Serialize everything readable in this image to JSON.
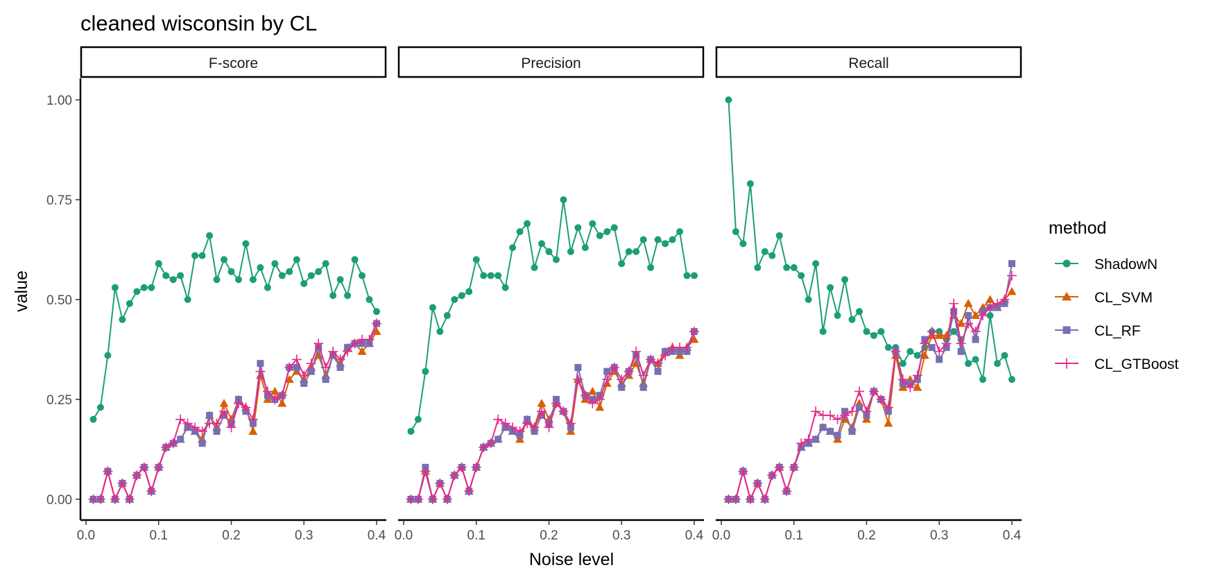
{
  "chart_data": {
    "type": "line",
    "title": "cleaned wisconsin by CL",
    "xlabel": "Noise level",
    "ylabel": "value",
    "xlim": [
      0,
      0.4
    ],
    "ylim": [
      0,
      1
    ],
    "x_ticks": [
      "0.0",
      "0.1",
      "0.2",
      "0.3",
      "0.4"
    ],
    "y_ticks": [
      "0.00",
      "0.25",
      "0.50",
      "0.75",
      "1.00"
    ],
    "grid": false,
    "legend": {
      "title": "method",
      "placement": "right",
      "entries": [
        {
          "name": "ShadowN",
          "color": "#1b9e77",
          "shape": "circle"
        },
        {
          "name": "CL_SVM",
          "color": "#d95f02",
          "shape": "triangle"
        },
        {
          "name": "CL_RF",
          "color": "#7570b3",
          "shape": "square"
        },
        {
          "name": "CL_GTBoost",
          "color": "#e7298a",
          "shape": "plus"
        }
      ]
    },
    "x": [
      0.01,
      0.02,
      0.03,
      0.04,
      0.05,
      0.06,
      0.07,
      0.08,
      0.09,
      0.1,
      0.11,
      0.12,
      0.13,
      0.14,
      0.15,
      0.16,
      0.17,
      0.18,
      0.19,
      0.2,
      0.21,
      0.22,
      0.23,
      0.24,
      0.25,
      0.26,
      0.27,
      0.28,
      0.29,
      0.3,
      0.31,
      0.32,
      0.33,
      0.34,
      0.35,
      0.36,
      0.37,
      0.38,
      0.39,
      0.4
    ],
    "panels": [
      {
        "name": "F-score",
        "series": [
          {
            "name": "ShadowN",
            "values": [
              0.2,
              0.23,
              0.36,
              0.53,
              0.45,
              0.49,
              0.52,
              0.53,
              0.53,
              0.59,
              0.56,
              0.55,
              0.56,
              0.5,
              0.61,
              0.61,
              0.66,
              0.55,
              0.6,
              0.57,
              0.55,
              0.64,
              0.55,
              0.58,
              0.53,
              0.59,
              0.56,
              0.57,
              0.6,
              0.54,
              0.56,
              0.57,
              0.59,
              0.51,
              0.55,
              0.51,
              0.6,
              0.56,
              0.5,
              0.47
            ]
          },
          {
            "name": "CL_SVM",
            "values": [
              0.0,
              0.0,
              0.07,
              0.0,
              0.04,
              0.0,
              0.06,
              0.08,
              0.02,
              0.08,
              0.13,
              0.14,
              0.15,
              0.18,
              0.17,
              0.15,
              0.21,
              0.18,
              0.24,
              0.2,
              0.25,
              0.23,
              0.17,
              0.31,
              0.25,
              0.27,
              0.24,
              0.3,
              0.32,
              0.3,
              0.33,
              0.36,
              0.31,
              0.36,
              0.34,
              0.38,
              0.39,
              0.37,
              0.39,
              0.42
            ]
          },
          {
            "name": "CL_RF",
            "values": [
              0.0,
              0.0,
              0.07,
              0.0,
              0.04,
              0.0,
              0.06,
              0.08,
              0.02,
              0.08,
              0.13,
              0.14,
              0.15,
              0.18,
              0.17,
              0.14,
              0.21,
              0.17,
              0.21,
              0.19,
              0.25,
              0.22,
              0.19,
              0.34,
              0.26,
              0.25,
              0.26,
              0.33,
              0.33,
              0.29,
              0.32,
              0.38,
              0.3,
              0.36,
              0.33,
              0.38,
              0.39,
              0.39,
              0.39,
              0.44
            ]
          },
          {
            "name": "CL_GTBoost",
            "values": [
              0.0,
              0.0,
              0.07,
              0.0,
              0.04,
              0.0,
              0.06,
              0.08,
              0.02,
              0.08,
              0.13,
              0.14,
              0.2,
              0.19,
              0.18,
              0.17,
              0.19,
              0.19,
              0.22,
              0.18,
              0.24,
              0.23,
              0.2,
              0.32,
              0.27,
              0.25,
              0.26,
              0.33,
              0.35,
              0.31,
              0.34,
              0.39,
              0.33,
              0.37,
              0.35,
              0.37,
              0.39,
              0.4,
              0.4,
              0.44
            ]
          }
        ]
      },
      {
        "name": "Precision",
        "series": [
          {
            "name": "ShadowN",
            "values": [
              0.17,
              0.2,
              0.32,
              0.48,
              0.42,
              0.46,
              0.5,
              0.51,
              0.52,
              0.6,
              0.56,
              0.56,
              0.56,
              0.53,
              0.63,
              0.67,
              0.69,
              0.58,
              0.64,
              0.62,
              0.6,
              0.75,
              0.62,
              0.68,
              0.63,
              0.69,
              0.66,
              0.67,
              0.68,
              0.59,
              0.62,
              0.62,
              0.65,
              0.58,
              0.65,
              0.64,
              0.65,
              0.67,
              0.56,
              0.56
            ]
          },
          {
            "name": "CL_SVM",
            "values": [
              0.0,
              0.0,
              0.07,
              0.0,
              0.04,
              0.0,
              0.06,
              0.08,
              0.02,
              0.08,
              0.13,
              0.14,
              0.15,
              0.18,
              0.17,
              0.15,
              0.2,
              0.18,
              0.24,
              0.2,
              0.24,
              0.22,
              0.17,
              0.3,
              0.25,
              0.27,
              0.23,
              0.29,
              0.32,
              0.29,
              0.31,
              0.34,
              0.29,
              0.35,
              0.34,
              0.37,
              0.38,
              0.36,
              0.38,
              0.4
            ]
          },
          {
            "name": "CL_RF",
            "values": [
              0.0,
              0.0,
              0.08,
              0.0,
              0.04,
              0.0,
              0.06,
              0.08,
              0.02,
              0.08,
              0.13,
              0.14,
              0.15,
              0.18,
              0.17,
              0.16,
              0.2,
              0.17,
              0.21,
              0.19,
              0.25,
              0.22,
              0.18,
              0.33,
              0.26,
              0.25,
              0.26,
              0.32,
              0.33,
              0.28,
              0.32,
              0.36,
              0.28,
              0.35,
              0.32,
              0.37,
              0.37,
              0.37,
              0.37,
              0.42
            ]
          },
          {
            "name": "CL_GTBoost",
            "values": [
              0.0,
              0.0,
              0.07,
              0.0,
              0.04,
              0.0,
              0.06,
              0.08,
              0.02,
              0.08,
              0.13,
              0.14,
              0.2,
              0.19,
              0.18,
              0.17,
              0.19,
              0.18,
              0.22,
              0.18,
              0.24,
              0.22,
              0.19,
              0.3,
              0.26,
              0.24,
              0.25,
              0.3,
              0.33,
              0.3,
              0.32,
              0.37,
              0.31,
              0.35,
              0.34,
              0.36,
              0.38,
              0.38,
              0.38,
              0.42
            ]
          }
        ]
      },
      {
        "name": "Recall",
        "series": [
          {
            "name": "ShadowN",
            "values": [
              1.0,
              0.67,
              0.64,
              0.79,
              0.58,
              0.62,
              0.61,
              0.66,
              0.58,
              0.58,
              0.56,
              0.5,
              0.59,
              0.42,
              0.53,
              0.46,
              0.55,
              0.45,
              0.47,
              0.42,
              0.41,
              0.42,
              0.38,
              0.38,
              0.34,
              0.37,
              0.36,
              0.38,
              0.42,
              0.42,
              0.4,
              0.42,
              0.4,
              0.34,
              0.35,
              0.3,
              0.46,
              0.34,
              0.36,
              0.3
            ]
          },
          {
            "name": "CL_SVM",
            "values": [
              0.0,
              0.0,
              0.07,
              0.0,
              0.04,
              0.0,
              0.06,
              0.08,
              0.02,
              0.08,
              0.13,
              0.14,
              0.15,
              0.18,
              0.17,
              0.15,
              0.2,
              0.18,
              0.24,
              0.2,
              0.27,
              0.25,
              0.19,
              0.36,
              0.28,
              0.3,
              0.28,
              0.36,
              0.41,
              0.41,
              0.41,
              0.46,
              0.44,
              0.49,
              0.46,
              0.48,
              0.5,
              0.48,
              0.5,
              0.52
            ]
          },
          {
            "name": "CL_RF",
            "values": [
              0.0,
              0.0,
              0.07,
              0.0,
              0.04,
              0.0,
              0.06,
              0.08,
              0.02,
              0.08,
              0.13,
              0.14,
              0.15,
              0.18,
              0.17,
              0.16,
              0.22,
              0.17,
              0.23,
              0.21,
              0.27,
              0.25,
              0.22,
              0.37,
              0.29,
              0.29,
              0.3,
              0.4,
              0.38,
              0.35,
              0.38,
              0.47,
              0.37,
              0.46,
              0.4,
              0.47,
              0.48,
              0.48,
              0.49,
              0.59
            ]
          },
          {
            "name": "CL_GTBoost",
            "values": [
              0.0,
              0.0,
              0.07,
              0.0,
              0.04,
              0.0,
              0.06,
              0.08,
              0.02,
              0.08,
              0.14,
              0.15,
              0.22,
              0.21,
              0.21,
              0.2,
              0.21,
              0.22,
              0.27,
              0.22,
              0.27,
              0.25,
              0.23,
              0.37,
              0.3,
              0.28,
              0.31,
              0.39,
              0.42,
              0.37,
              0.39,
              0.49,
              0.39,
              0.44,
              0.42,
              0.46,
              0.48,
              0.49,
              0.5,
              0.56
            ]
          }
        ]
      }
    ]
  }
}
